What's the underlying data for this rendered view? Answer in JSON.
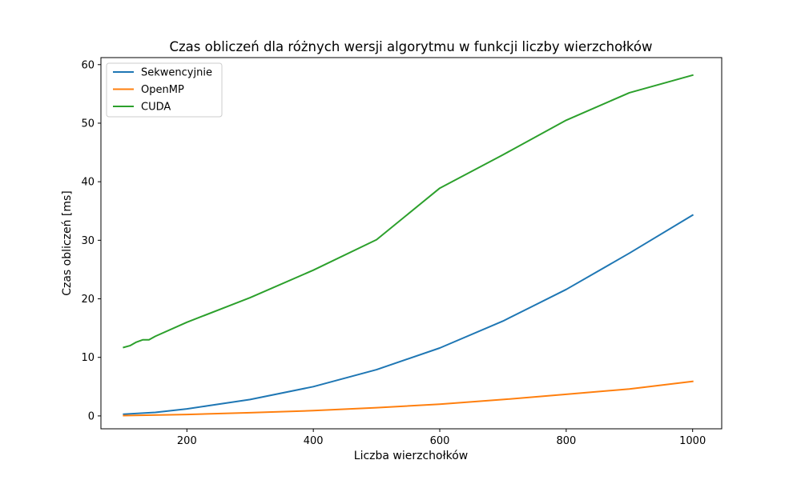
{
  "chart_data": {
    "type": "line",
    "title": "Czas obliczeń dla różnych wersji algorytmu w funkcji liczby wierzchołków",
    "xlabel": "Liczba wierzchołków",
    "ylabel": "Czas obliczeń [ms]",
    "xlim": [
      64,
      1046
    ],
    "ylim": [
      -2.2,
      61.2
    ],
    "xticks": [
      200,
      400,
      600,
      800,
      1000
    ],
    "yticks": [
      0,
      10,
      20,
      30,
      40,
      50,
      60
    ],
    "legend_position": "top-left",
    "grid": false,
    "series": [
      {
        "name": "Sekwencyjnie",
        "color": "#1f77b4",
        "x": [
          100,
          150,
          200,
          300,
          400,
          500,
          600,
          700,
          800,
          900,
          1000
        ],
        "y": [
          0.3,
          0.6,
          1.2,
          2.8,
          5.0,
          7.9,
          11.6,
          16.2,
          21.6,
          27.8,
          34.3
        ]
      },
      {
        "name": "OpenMP",
        "color": "#ff7f0e",
        "x": [
          100,
          200,
          300,
          400,
          500,
          600,
          700,
          800,
          900,
          1000
        ],
        "y": [
          0.05,
          0.25,
          0.55,
          0.9,
          1.4,
          2.0,
          2.8,
          3.7,
          4.6,
          5.9
        ]
      },
      {
        "name": "CUDA",
        "color": "#2ca02c",
        "x": [
          100,
          110,
          120,
          130,
          140,
          150,
          200,
          300,
          400,
          500,
          600,
          700,
          800,
          900,
          1000
        ],
        "y": [
          11.7,
          12.0,
          12.6,
          13.0,
          13.0,
          13.6,
          16.0,
          20.2,
          24.9,
          30.1,
          38.9,
          44.6,
          50.5,
          55.2,
          58.2
        ]
      }
    ]
  }
}
